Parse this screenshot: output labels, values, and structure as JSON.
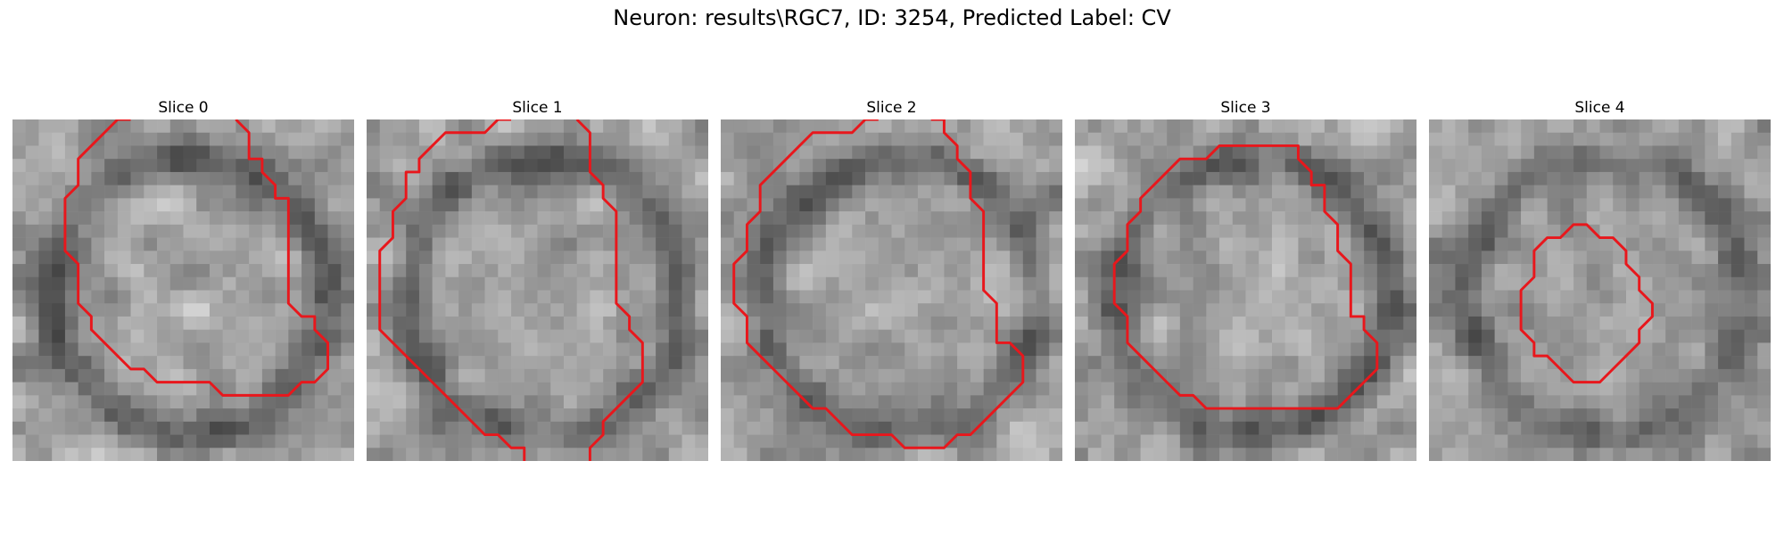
{
  "figure": {
    "title": "Neuron: results\\RGC7, ID: 3254, Predicted Label: CV"
  },
  "panels": [
    {
      "title": "Slice 0",
      "contour": [
        [
          9,
          0
        ],
        [
          8,
          0
        ],
        [
          7,
          1
        ],
        [
          6,
          2
        ],
        [
          5,
          3
        ],
        [
          5,
          5
        ],
        [
          4,
          6
        ],
        [
          4,
          10
        ],
        [
          5,
          11
        ],
        [
          5,
          14
        ],
        [
          6,
          15
        ],
        [
          6,
          16
        ],
        [
          7,
          17
        ],
        [
          8,
          18
        ],
        [
          9,
          19
        ],
        [
          10,
          19
        ],
        [
          11,
          20
        ],
        [
          15,
          20
        ],
        [
          16,
          21
        ],
        [
          21,
          21
        ],
        [
          22,
          20
        ],
        [
          23,
          20
        ],
        [
          24,
          19
        ],
        [
          24,
          17
        ],
        [
          23,
          16
        ],
        [
          23,
          15
        ],
        [
          22,
          15
        ],
        [
          21,
          14
        ],
        [
          21,
          6
        ],
        [
          20,
          6
        ],
        [
          20,
          5
        ],
        [
          19,
          4
        ],
        [
          19,
          3
        ],
        [
          18,
          3
        ],
        [
          18,
          1
        ],
        [
          17,
          0
        ]
      ],
      "closed": false
    },
    {
      "title": "Slice 1",
      "contour": [
        [
          11,
          0
        ],
        [
          10,
          0
        ],
        [
          9,
          1
        ],
        [
          6,
          1
        ],
        [
          5,
          2
        ],
        [
          4,
          3
        ],
        [
          4,
          4
        ],
        [
          3,
          4
        ],
        [
          3,
          6
        ],
        [
          2,
          7
        ],
        [
          2,
          9
        ],
        [
          1,
          10
        ],
        [
          1,
          16
        ],
        [
          2,
          17
        ],
        [
          3,
          18
        ],
        [
          4,
          19
        ],
        [
          5,
          20
        ],
        [
          6,
          21
        ],
        [
          7,
          22
        ],
        [
          8,
          23
        ],
        [
          9,
          24
        ],
        [
          10,
          24
        ],
        [
          11,
          25
        ],
        [
          12,
          25
        ],
        [
          12,
          26
        ]
      ],
      "contour2": [
        [
          16,
          0
        ],
        [
          17,
          1
        ],
        [
          17,
          4
        ],
        [
          18,
          5
        ],
        [
          18,
          6
        ],
        [
          19,
          7
        ],
        [
          19,
          14
        ],
        [
          20,
          15
        ],
        [
          20,
          16
        ],
        [
          21,
          17
        ],
        [
          21,
          20
        ],
        [
          20,
          21
        ],
        [
          19,
          22
        ],
        [
          18,
          23
        ],
        [
          18,
          24
        ],
        [
          17,
          25
        ],
        [
          17,
          26
        ]
      ],
      "closed": false
    },
    {
      "title": "Slice 2",
      "contour": [
        [
          12,
          0
        ],
        [
          11,
          0
        ],
        [
          10,
          1
        ],
        [
          7,
          1
        ],
        [
          6,
          2
        ],
        [
          5,
          3
        ],
        [
          4,
          4
        ],
        [
          3,
          5
        ],
        [
          3,
          7
        ],
        [
          2,
          8
        ],
        [
          2,
          10
        ],
        [
          1,
          11
        ],
        [
          1,
          14
        ],
        [
          2,
          15
        ],
        [
          2,
          17
        ],
        [
          3,
          18
        ],
        [
          4,
          19
        ],
        [
          5,
          20
        ],
        [
          6,
          21
        ],
        [
          7,
          22
        ],
        [
          8,
          22
        ],
        [
          9,
          23
        ],
        [
          10,
          24
        ],
        [
          13,
          24
        ],
        [
          14,
          25
        ],
        [
          17,
          25
        ],
        [
          18,
          24
        ],
        [
          19,
          24
        ],
        [
          20,
          23
        ],
        [
          21,
          22
        ],
        [
          22,
          21
        ],
        [
          23,
          20
        ],
        [
          23,
          18
        ],
        [
          22,
          17
        ],
        [
          21,
          17
        ],
        [
          21,
          14
        ],
        [
          20,
          13
        ],
        [
          20,
          7
        ],
        [
          19,
          6
        ],
        [
          19,
          4
        ],
        [
          18,
          3
        ],
        [
          18,
          2
        ],
        [
          17,
          1
        ],
        [
          17,
          0
        ],
        [
          16,
          0
        ]
      ],
      "closed": false
    },
    {
      "title": "Slice 3",
      "contour": [
        [
          11,
          2
        ],
        [
          10,
          3
        ],
        [
          8,
          3
        ],
        [
          7,
          4
        ],
        [
          6,
          5
        ],
        [
          5,
          6
        ],
        [
          5,
          7
        ],
        [
          4,
          8
        ],
        [
          4,
          10
        ],
        [
          3,
          11
        ],
        [
          3,
          14
        ],
        [
          4,
          15
        ],
        [
          4,
          17
        ],
        [
          5,
          18
        ],
        [
          6,
          19
        ],
        [
          7,
          20
        ],
        [
          8,
          21
        ],
        [
          9,
          21
        ],
        [
          10,
          22
        ],
        [
          20,
          22
        ],
        [
          21,
          21
        ],
        [
          22,
          20
        ],
        [
          23,
          19
        ],
        [
          23,
          17
        ],
        [
          22,
          16
        ],
        [
          22,
          15
        ],
        [
          21,
          15
        ],
        [
          21,
          11
        ],
        [
          20,
          10
        ],
        [
          20,
          8
        ],
        [
          19,
          7
        ],
        [
          19,
          5
        ],
        [
          18,
          5
        ],
        [
          18,
          4
        ],
        [
          17,
          3
        ],
        [
          17,
          2
        ]
      ],
      "closed": true
    },
    {
      "title": "Slice 4",
      "contour": [
        [
          12,
          8
        ],
        [
          11,
          8
        ],
        [
          10,
          9
        ],
        [
          9,
          9
        ],
        [
          8,
          10
        ],
        [
          8,
          12
        ],
        [
          7,
          13
        ],
        [
          7,
          16
        ],
        [
          8,
          17
        ],
        [
          8,
          18
        ],
        [
          9,
          18
        ],
        [
          10,
          19
        ],
        [
          11,
          20
        ],
        [
          13,
          20
        ],
        [
          14,
          19
        ],
        [
          15,
          18
        ],
        [
          16,
          17
        ],
        [
          16,
          16
        ],
        [
          17,
          15
        ],
        [
          17,
          14
        ],
        [
          16,
          13
        ],
        [
          16,
          12
        ],
        [
          15,
          11
        ],
        [
          15,
          10
        ],
        [
          14,
          9
        ],
        [
          13,
          9
        ]
      ],
      "closed": true
    }
  ]
}
